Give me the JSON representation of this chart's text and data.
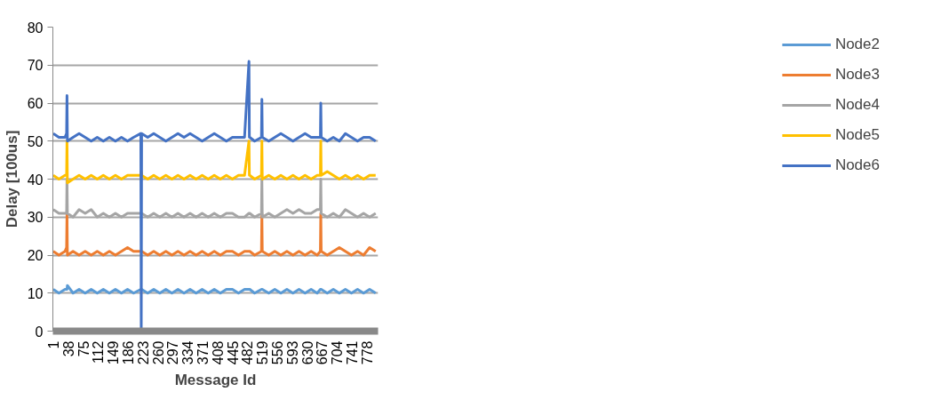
{
  "chart_data": {
    "type": "line",
    "xlabel": "Message Id",
    "ylabel": "Delay [100us]",
    "x": [
      1,
      15,
      30,
      34,
      35,
      36,
      50,
      65,
      80,
      95,
      110,
      125,
      140,
      155,
      170,
      185,
      200,
      218,
      219,
      220,
      235,
      250,
      265,
      280,
      295,
      310,
      325,
      340,
      355,
      370,
      385,
      400,
      415,
      430,
      445,
      460,
      475,
      486,
      487,
      488,
      500,
      517,
      518,
      519,
      535,
      550,
      565,
      580,
      595,
      610,
      625,
      640,
      655,
      663,
      664,
      665,
      680,
      695,
      710,
      725,
      740,
      755,
      770,
      785,
      800
    ],
    "xlim": [
      0,
      806
    ],
    "xticks": [
      1,
      38,
      75,
      112,
      149,
      186,
      223,
      260,
      297,
      334,
      371,
      408,
      445,
      482,
      519,
      556,
      593,
      630,
      667,
      704,
      741,
      778
    ],
    "ylim": [
      0,
      80
    ],
    "yticks": [
      0,
      10,
      20,
      30,
      40,
      50,
      60,
      70,
      80
    ],
    "grid": "y",
    "legend": "right",
    "marker": "none",
    "line_style": "solid",
    "series": [
      {
        "name": "Node2",
        "color": "#5b9bd5",
        "values": [
          11,
          10,
          11,
          11,
          11,
          12,
          10,
          11,
          10,
          11,
          10,
          11,
          10,
          11,
          10,
          11,
          10,
          11,
          11,
          11,
          10,
          11,
          10,
          11,
          10,
          11,
          10,
          11,
          10,
          11,
          10,
          11,
          10,
          11,
          11,
          10,
          11,
          11,
          11,
          11,
          10,
          11,
          11,
          11,
          10,
          11,
          10,
          11,
          10,
          11,
          10,
          11,
          10,
          11,
          11,
          11,
          10,
          11,
          10,
          11,
          10,
          11,
          10,
          11,
          10
        ]
      },
      {
        "name": "Node3",
        "color": "#ed7d31",
        "values": [
          21,
          20,
          21,
          22,
          31,
          20,
          21,
          20,
          21,
          20,
          21,
          20,
          21,
          20,
          21,
          22,
          21,
          21,
          21,
          21,
          20,
          21,
          20,
          21,
          20,
          21,
          20,
          21,
          20,
          21,
          20,
          21,
          20,
          21,
          21,
          20,
          21,
          21,
          21,
          21,
          20,
          21,
          31,
          21,
          20,
          21,
          20,
          21,
          20,
          21,
          20,
          21,
          20,
          21,
          31,
          21,
          20,
          21,
          22,
          21,
          20,
          21,
          20,
          22,
          21
        ]
      },
      {
        "name": "Node4",
        "color": "#a5a5a5",
        "values": [
          32,
          31,
          31,
          31,
          40,
          31,
          30,
          32,
          31,
          32,
          30,
          31,
          30,
          31,
          30,
          31,
          31,
          31,
          31,
          31,
          30,
          31,
          30,
          31,
          30,
          31,
          30,
          31,
          30,
          31,
          30,
          31,
          30,
          31,
          31,
          30,
          30,
          31,
          31,
          31,
          30,
          31,
          40,
          30,
          31,
          30,
          31,
          32,
          31,
          32,
          31,
          31,
          32,
          32,
          40,
          31,
          30,
          31,
          30,
          32,
          31,
          30,
          31,
          30,
          31
        ]
      },
      {
        "name": "Node5",
        "color": "#ffc000",
        "values": [
          41,
          40,
          41,
          41,
          50,
          39,
          40,
          41,
          40,
          41,
          40,
          41,
          40,
          41,
          40,
          41,
          41,
          41,
          42,
          41,
          40,
          41,
          40,
          41,
          40,
          41,
          40,
          41,
          40,
          41,
          40,
          41,
          40,
          41,
          40,
          41,
          41,
          50,
          41,
          41,
          40,
          41,
          50,
          40,
          41,
          40,
          41,
          40,
          41,
          40,
          41,
          40,
          41,
          41,
          50,
          41,
          42,
          41,
          40,
          41,
          40,
          41,
          40,
          41,
          41
        ]
      },
      {
        "name": "Node6",
        "color": "#4472c4",
        "values": [
          52,
          51,
          51,
          52,
          62,
          50,
          51,
          52,
          51,
          50,
          51,
          50,
          51,
          50,
          51,
          50,
          51,
          52,
          0,
          52,
          51,
          52,
          51,
          50,
          51,
          52,
          51,
          52,
          51,
          50,
          51,
          52,
          51,
          50,
          51,
          51,
          51,
          71,
          51,
          51,
          50,
          51,
          61,
          51,
          50,
          51,
          52,
          51,
          50,
          51,
          52,
          51,
          51,
          51,
          60,
          51,
          50,
          51,
          50,
          52,
          51,
          50,
          51,
          51,
          50
        ]
      }
    ]
  }
}
